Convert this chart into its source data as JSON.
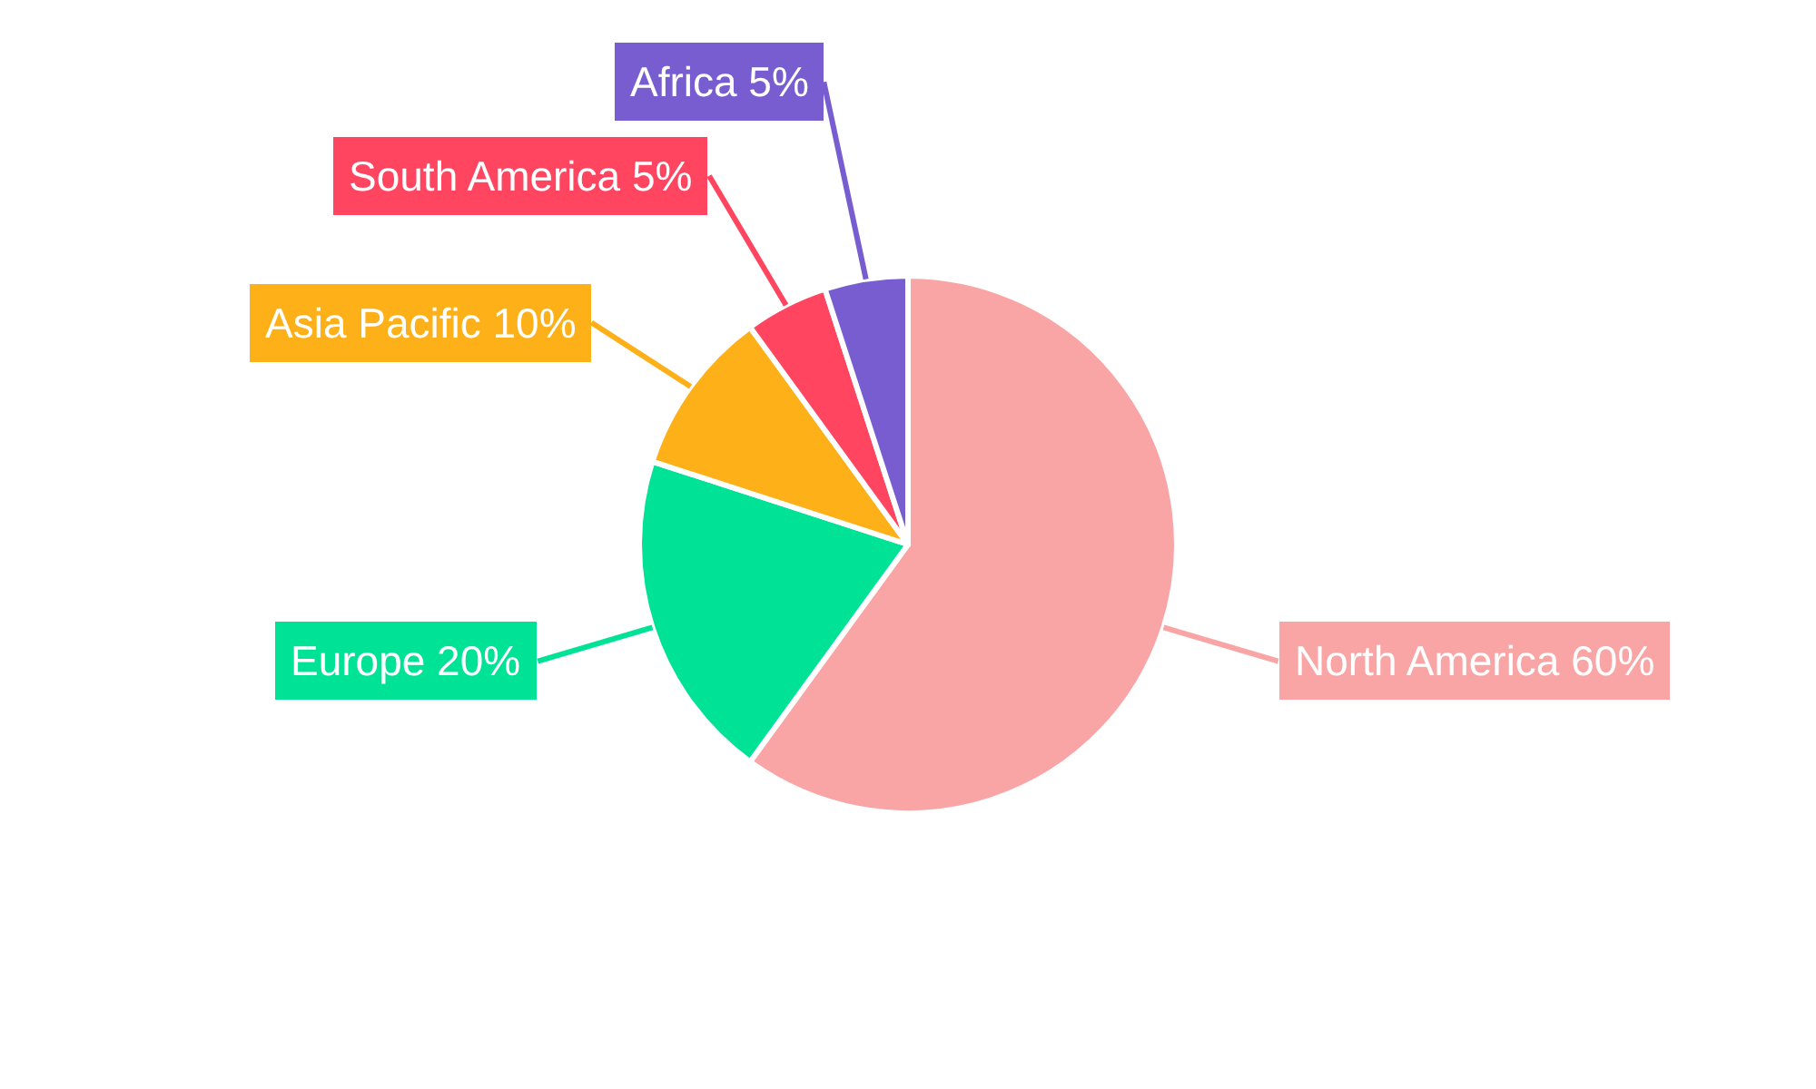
{
  "chart_data": {
    "type": "pie",
    "categories": [
      "North America",
      "Europe",
      "Asia Pacific",
      "South America",
      "Africa"
    ],
    "values": [
      60,
      20,
      10,
      5,
      5
    ],
    "value_labels": [
      "60%",
      "20%",
      "10%",
      "5%",
      "5%"
    ],
    "colors": [
      "#f9a5a5",
      "#00e396",
      "#feb019",
      "#ff4560",
      "#775dd0"
    ],
    "legend": false
  }
}
